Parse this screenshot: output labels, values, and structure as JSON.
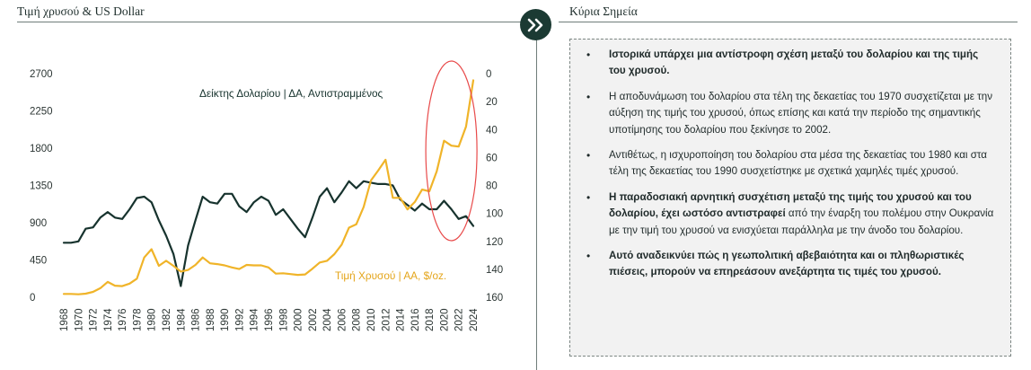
{
  "left_panel": {
    "title": "Τιμή χρυσού & US Dollar"
  },
  "right_panel": {
    "title": "Κύρια Σημεία",
    "points": [
      {
        "bold": "Ιστορικά υπάρχει μια αντίστροφη σχέση μεταξύ του δολαρίου και της τιμής του χρυσού.",
        "text": ""
      },
      {
        "bold": "",
        "text": "Η αποδυνάμωση του δολαρίου στα τέλη της δεκαετίας του 1970 συσχετίζεται με την αύξηση της τιμής του χρυσού, όπως επίσης και κατά την περίοδο της  σημαντικής υποτίμησης του δολαρίου που ξεκίνησε το 2002."
      },
      {
        "bold": "",
        "text": "Αντιθέτως, η ισχυροποίηση του δολαρίου στα μέσα της δεκαετίας του 1980 και στα τέλη της δεκαετίας του 1990 συσχετίστηκε με σχετικά χαμηλές τιμές χρυσού."
      },
      {
        "bold": "Η παραδοσιακή αρνητική συσχέτιση μεταξύ της τιμής του χρυσού και του δολαρίου, έχει ωστόσο αντιστραφεί",
        "text": " από την έναρξη του πολέμου στην Ουκρανία με την τιμή του χρυσού να ενισχύεται παράλληλα με την άνοδο του δολαρίου."
      },
      {
        "bold": "Αυτό αναδεικνύει πώς η γεωπολιτική αβεβαιότητα και οι πληθωριστικές πιέσεις, μπορούν να επηρεάσουν ανεξάρτητα τις τιμές του χρυσού.",
        "text": ""
      }
    ]
  },
  "icons": {
    "badge": "double-chevron-right-icon"
  },
  "colors": {
    "gold": "#f0b429",
    "dollar": "#17332e",
    "highlight": "#e84a4a",
    "badge": "#1b3a33"
  },
  "chart_data": {
    "type": "line",
    "x_ticks": [
      1968,
      1970,
      1972,
      1974,
      1976,
      1978,
      1980,
      1982,
      1984,
      1986,
      1988,
      1990,
      1992,
      1994,
      1996,
      1998,
      2000,
      2002,
      2004,
      2006,
      2008,
      2010,
      2012,
      2014,
      2016,
      2018,
      2020,
      2022,
      2024
    ],
    "y_left": {
      "ticks": [
        0,
        450,
        900,
        1350,
        1800,
        2250,
        2700
      ],
      "range": [
        0,
        2700
      ]
    },
    "y_right": {
      "ticks": [
        0,
        20,
        40,
        60,
        80,
        100,
        120,
        140,
        160
      ],
      "range": [
        0,
        160
      ],
      "inverted": true
    },
    "series": [
      {
        "name": "Δείκτης Δολαρίου | ΔΑ, Αντιστραμμένος",
        "axis": "right",
        "color": "#17332e",
        "points": [
          [
            1968,
            121
          ],
          [
            1969,
            121
          ],
          [
            1970,
            120
          ],
          [
            1971,
            111
          ],
          [
            1972,
            110
          ],
          [
            1973,
            103
          ],
          [
            1974,
            99
          ],
          [
            1975,
            103
          ],
          [
            1976,
            104
          ],
          [
            1977,
            97
          ],
          [
            1978,
            89
          ],
          [
            1979,
            88
          ],
          [
            1980,
            92
          ],
          [
            1981,
            105
          ],
          [
            1982,
            116
          ],
          [
            1983,
            129
          ],
          [
            1984,
            152
          ],
          [
            1985,
            123
          ],
          [
            1986,
            105
          ],
          [
            1987,
            88
          ],
          [
            1988,
            92
          ],
          [
            1989,
            93
          ],
          [
            1990,
            86
          ],
          [
            1991,
            86
          ],
          [
            1992,
            95
          ],
          [
            1993,
            99
          ],
          [
            1994,
            92
          ],
          [
            1995,
            88
          ],
          [
            1996,
            91
          ],
          [
            1997,
            101
          ],
          [
            1998,
            97
          ],
          [
            1999,
            104
          ],
          [
            2000,
            111
          ],
          [
            2001,
            117
          ],
          [
            2002,
            103
          ],
          [
            2003,
            88
          ],
          [
            2004,
            82
          ],
          [
            2005,
            92
          ],
          [
            2006,
            85
          ],
          [
            2007,
            77
          ],
          [
            2008,
            82
          ],
          [
            2009,
            77
          ],
          [
            2010,
            78
          ],
          [
            2011,
            79
          ],
          [
            2012,
            79
          ],
          [
            2013,
            80
          ],
          [
            2014,
            90
          ],
          [
            2015,
            94
          ],
          [
            2016,
            98
          ],
          [
            2017,
            93
          ],
          [
            2018,
            97
          ],
          [
            2019,
            97
          ],
          [
            2020,
            91
          ],
          [
            2021,
            97
          ],
          [
            2022,
            104
          ],
          [
            2023,
            102
          ],
          [
            2024,
            109
          ]
        ]
      },
      {
        "name": "Τιμή Χρυσού | ΑΑ, $/oz.",
        "axis": "left",
        "color": "#f0b429",
        "points": [
          [
            1968,
            40
          ],
          [
            1969,
            40
          ],
          [
            1970,
            36
          ],
          [
            1971,
            43
          ],
          [
            1972,
            65
          ],
          [
            1973,
            110
          ],
          [
            1974,
            185
          ],
          [
            1975,
            140
          ],
          [
            1976,
            135
          ],
          [
            1977,
            165
          ],
          [
            1978,
            225
          ],
          [
            1979,
            480
          ],
          [
            1980,
            580
          ],
          [
            1981,
            380
          ],
          [
            1982,
            440
          ],
          [
            1983,
            380
          ],
          [
            1984,
            310
          ],
          [
            1985,
            330
          ],
          [
            1986,
            390
          ],
          [
            1987,
            480
          ],
          [
            1988,
            410
          ],
          [
            1989,
            400
          ],
          [
            1990,
            385
          ],
          [
            1991,
            360
          ],
          [
            1992,
            340
          ],
          [
            1993,
            390
          ],
          [
            1994,
            385
          ],
          [
            1995,
            385
          ],
          [
            1996,
            360
          ],
          [
            1997,
            285
          ],
          [
            1998,
            290
          ],
          [
            1999,
            280
          ],
          [
            2000,
            270
          ],
          [
            2001,
            275
          ],
          [
            2002,
            345
          ],
          [
            2003,
            420
          ],
          [
            2004,
            440
          ],
          [
            2005,
            520
          ],
          [
            2006,
            635
          ],
          [
            2007,
            840
          ],
          [
            2008,
            880
          ],
          [
            2009,
            1090
          ],
          [
            2010,
            1410
          ],
          [
            2011,
            1530
          ],
          [
            2012,
            1660
          ],
          [
            2013,
            1200
          ],
          [
            2014,
            1200
          ],
          [
            2015,
            1060
          ],
          [
            2016,
            1150
          ],
          [
            2017,
            1300
          ],
          [
            2018,
            1280
          ],
          [
            2019,
            1520
          ],
          [
            2020,
            1890
          ],
          [
            2021,
            1830
          ],
          [
            2022,
            1820
          ],
          [
            2023,
            2060
          ],
          [
            2024,
            2620
          ]
        ]
      }
    ],
    "annotations": {
      "dollar_label": "Δείκτης Δολαρίου | ΔΑ, Αντιστραμμένος",
      "gold_label": "Τιμή Χρυσού | ΑΑ, $/oz."
    },
    "highlight": {
      "shape": "ellipse",
      "x_range": [
        2017.5,
        2024.5
      ]
    }
  }
}
